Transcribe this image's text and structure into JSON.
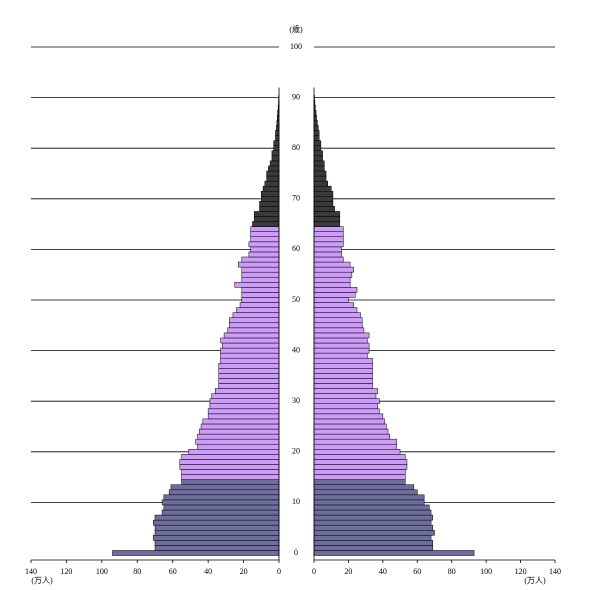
{
  "chart_data": {
    "type": "population-pyramid",
    "y_unit_label": "(歳)",
    "x_unit_label": "(万人)",
    "y": [
      0,
      1,
      2,
      3,
      4,
      5,
      6,
      7,
      8,
      9,
      10,
      11,
      12,
      13,
      14,
      15,
      16,
      17,
      18,
      19,
      20,
      21,
      22,
      23,
      24,
      25,
      26,
      27,
      28,
      29,
      30,
      31,
      32,
      33,
      34,
      35,
      36,
      37,
      38,
      39,
      40,
      41,
      42,
      43,
      44,
      45,
      46,
      47,
      48,
      49,
      50,
      51,
      52,
      53,
      54,
      55,
      56,
      57,
      58,
      59,
      60,
      61,
      62,
      63,
      64,
      65,
      66,
      67,
      68,
      69,
      70,
      71,
      72,
      73,
      74,
      75,
      76,
      77,
      78,
      79,
      80,
      81,
      82,
      83,
      84,
      85,
      86,
      87,
      88,
      89,
      90
    ],
    "series": [
      {
        "side": "left",
        "values": [
          94,
          70,
          70,
          71,
          70,
          70,
          71,
          70,
          66,
          65,
          66,
          65,
          62,
          61,
          55,
          55,
          55,
          56,
          56,
          55,
          51,
          46,
          47,
          46,
          45,
          44,
          43,
          40,
          40,
          39,
          39,
          38,
          36,
          34,
          34,
          34,
          34,
          34,
          33,
          33,
          33,
          32,
          33,
          31,
          29,
          28,
          28,
          26,
          24,
          22,
          21,
          21,
          21,
          25,
          21,
          21,
          21,
          23,
          21,
          17,
          16,
          17,
          16,
          16,
          16,
          15,
          14,
          14,
          11,
          11,
          10,
          10,
          9,
          8,
          7,
          7,
          6,
          5,
          4,
          4,
          3,
          3,
          2,
          2,
          1.5,
          1.2,
          1,
          0.8,
          0.5,
          0.3,
          0.2
        ]
      },
      {
        "side": "right",
        "values": [
          93,
          69,
          69,
          68,
          70,
          69,
          68,
          69,
          68,
          67,
          64,
          64,
          60,
          58,
          53,
          53,
          53,
          54,
          54,
          53,
          50,
          48,
          48,
          44,
          43,
          42,
          41,
          40,
          38,
          37,
          38,
          36,
          37,
          34,
          34,
          34,
          34,
          34,
          34,
          31,
          32,
          32,
          31,
          32,
          29,
          28,
          28,
          27,
          25,
          23,
          20,
          24,
          25,
          21,
          21,
          22,
          23,
          21,
          17,
          16,
          16,
          17,
          17,
          17,
          17,
          15,
          15,
          15,
          12,
          11,
          11,
          11,
          10,
          8,
          7,
          7,
          6,
          6,
          5,
          5,
          4,
          4,
          3,
          3,
          2.5,
          2,
          1.5,
          1.2,
          0.8,
          0.5,
          0.3
        ]
      }
    ],
    "age_groups": [
      {
        "from": 0,
        "to": 14,
        "color": "#6e6e9e"
      },
      {
        "from": 15,
        "to": 64,
        "color": "#cc9cf8"
      },
      {
        "from": 65,
        "to": 100,
        "color": "#3a3a3a"
      }
    ],
    "xlim": [
      0,
      140
    ],
    "xticks": [
      0,
      20,
      40,
      60,
      80,
      100,
      120,
      140
    ],
    "ylim": [
      0,
      100
    ],
    "yticks": [
      0,
      10,
      20,
      30,
      40,
      50,
      60,
      70,
      80,
      90,
      100
    ],
    "grid": true
  }
}
